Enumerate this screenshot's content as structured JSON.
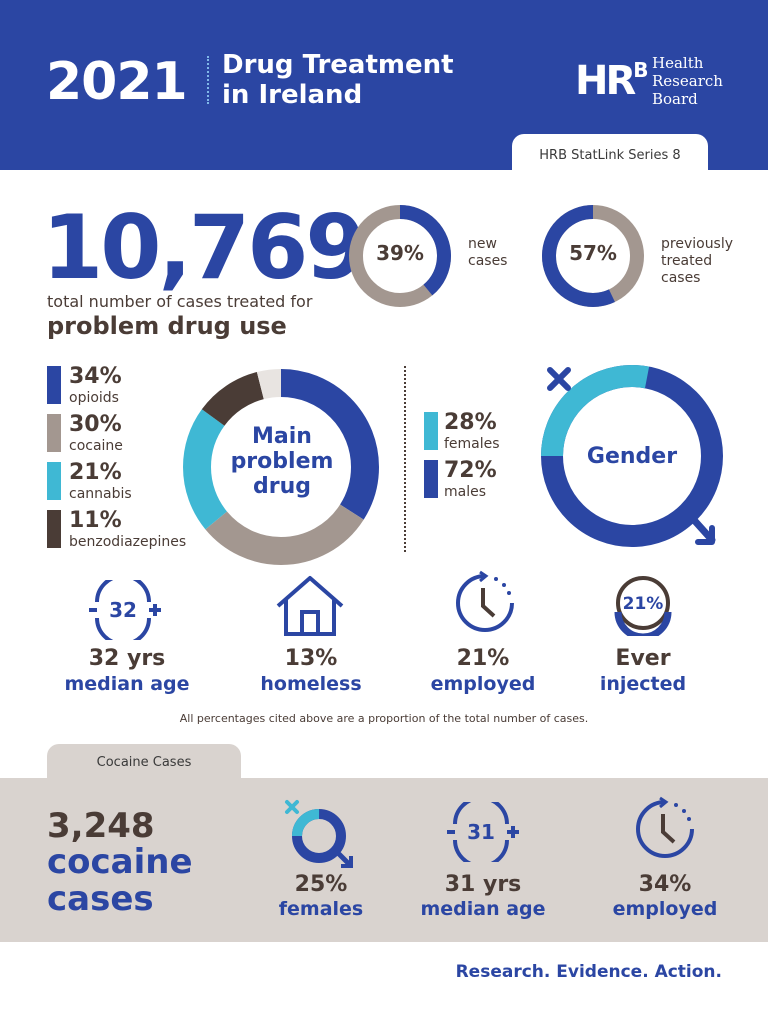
{
  "header": {
    "year": "2021",
    "title_line1": "Drug Treatment",
    "title_line2": "in Ireland",
    "logo_mark": "HR",
    "logo_sup": "B",
    "logo_line1": "Health",
    "logo_line2": "Research",
    "logo_line3": "Board",
    "series": "HRB StatLink Series 8",
    "bg_color": "#2b46a3"
  },
  "total": {
    "value": "10,769",
    "caption_line1": "total number of cases treated for",
    "caption_line2": "problem drug use"
  },
  "case_split": [
    {
      "pct_label": "39%",
      "value": 39,
      "line1": "new",
      "line2": "cases",
      "line3": ""
    },
    {
      "pct_label": "57%",
      "value": 57,
      "line1": "previously",
      "line2": "treated",
      "line3": "cases"
    }
  ],
  "main_drug": {
    "center_line1": "Main",
    "center_line2": "problem",
    "center_line3": "drug",
    "items": [
      {
        "pct": "34%",
        "name": "opioids",
        "value": 34,
        "color": "#2b46a3"
      },
      {
        "pct": "30%",
        "name": "cocaine",
        "value": 30,
        "color": "#a39790"
      },
      {
        "pct": "21%",
        "name": "cannabis",
        "value": 21,
        "color": "#3fb8d4"
      },
      {
        "pct": "11%",
        "name": "benzodiazepines",
        "value": 11,
        "color": "#4a3c36"
      }
    ],
    "other_color": "#e8e4e1"
  },
  "gender": {
    "center": "Gender",
    "items": [
      {
        "pct": "28%",
        "name": "females",
        "value": 28,
        "color": "#3fb8d4"
      },
      {
        "pct": "72%",
        "name": "males",
        "value": 72,
        "color": "#2b46a3"
      }
    ]
  },
  "stats": [
    {
      "icon_text": "32",
      "num": "32 yrs",
      "label": "median age"
    },
    {
      "icon_text": "",
      "num": "13%",
      "label": "homeless"
    },
    {
      "icon_text": "",
      "num": "21%",
      "label": "employed"
    },
    {
      "icon_text": "21%",
      "num": "Ever",
      "label": "injected"
    }
  ],
  "footnote": "All percentages cited above are a proportion of the total number of cases.",
  "cocaine": {
    "tab": "Cocaine Cases",
    "num": "3,248",
    "label_line1": "cocaine",
    "label_line2": "cases",
    "stats": [
      {
        "icon_text": "",
        "num": "25%",
        "label": "females",
        "value": 25
      },
      {
        "icon_text": "31",
        "num": "31 yrs",
        "label": "median age"
      },
      {
        "icon_text": "",
        "num": "34%",
        "label": "employed"
      }
    ]
  },
  "tagline": "Research. Evidence. Action."
}
